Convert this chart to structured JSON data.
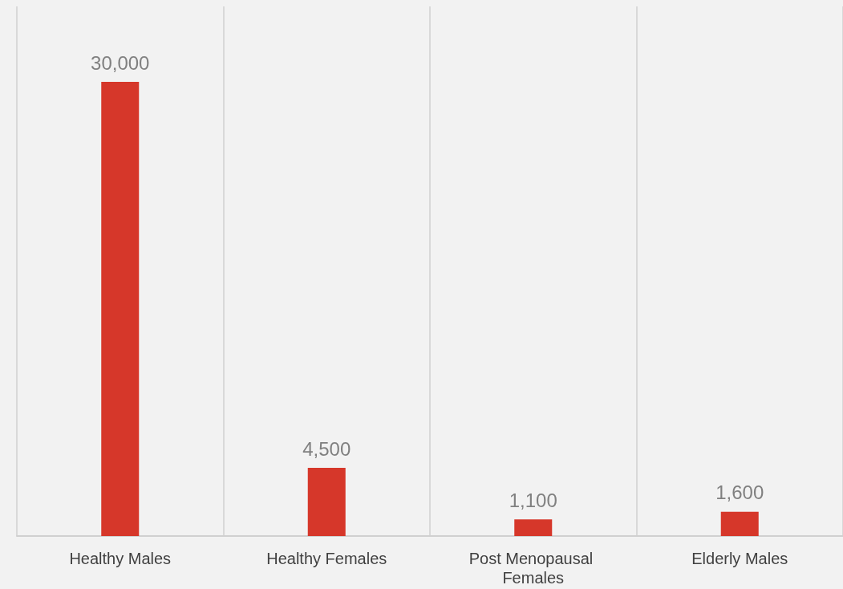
{
  "chart_data": {
    "type": "bar",
    "categories": [
      "Healthy Males",
      "Healthy Females",
      "Post Menopausal Females",
      "Elderly Males"
    ],
    "values": [
      30000,
      4500,
      1100,
      1600
    ],
    "value_labels": [
      "30,000",
      "4,500",
      "1,100",
      "1,600"
    ],
    "color": "#d6372a",
    "grid": "x"
  }
}
